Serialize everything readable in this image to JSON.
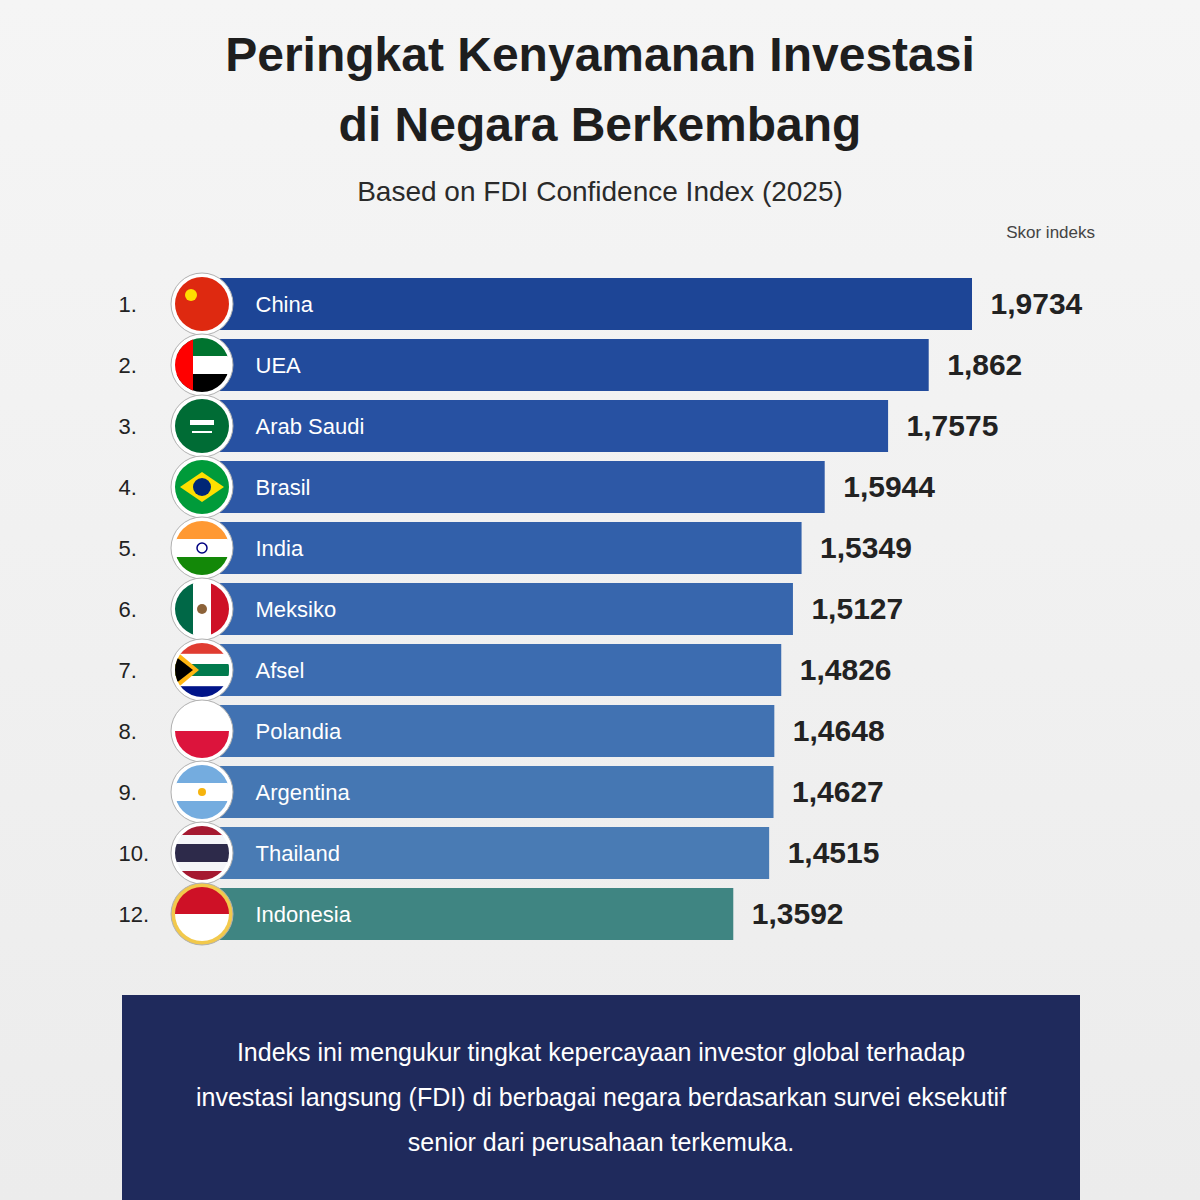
{
  "chart_data": {
    "type": "bar",
    "orientation": "horizontal",
    "title": "Peringkat Kenyamanan Investasi di Negara Berkembang",
    "subtitle": "Based on FDI Confidence Index (2025)",
    "xlabel": "Skor indeks",
    "caption": "Indeks ini mengukur tingkat kepercayaan investor global terhadap investasi langsung (FDI) di berbagai negara berdasarkan survei eksekutif senior dari perusahaan terkemuka.",
    "rank_labels": [
      "1.",
      "2.",
      "3.",
      "4.",
      "5.",
      "6.",
      "7.",
      "8.",
      "9.",
      "10.",
      "12."
    ],
    "categories": [
      "China",
      "UEA",
      "Arab Saudi",
      "Brasil",
      "India",
      "Meksiko",
      "Afsel",
      "Polandia",
      "Argentina",
      "Thailand",
      "Indonesia"
    ],
    "values": [
      1.9734,
      1.862,
      1.7575,
      1.5944,
      1.5349,
      1.5127,
      1.4826,
      1.4648,
      1.4627,
      1.4515,
      1.3592
    ],
    "value_labels": [
      "1,9734",
      "1,862",
      "1,7575",
      "1,5944",
      "1,5349",
      "1,5127",
      "1,4826",
      "1,4648",
      "1,4627",
      "1,4515",
      "1,3592"
    ],
    "colors": [
      "#1d4596",
      "#224b9c",
      "#2751a2",
      "#2d58a6",
      "#3260aa",
      "#3766ad",
      "#3c6cb0",
      "#4172b2",
      "#4577b3",
      "#497bb4",
      "#3f8582"
    ],
    "data_labels": true,
    "tick_labels": false,
    "grid": false
  }
}
